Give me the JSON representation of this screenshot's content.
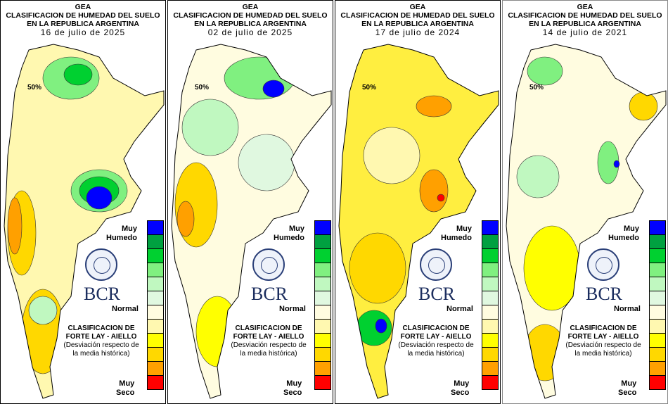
{
  "header": {
    "line1": "GEA",
    "line2": "CLASIFICACION DE HUMEDAD DEL SUELO",
    "line3": "EN LA REPUBLICA ARGENTINA"
  },
  "panels": [
    {
      "date": "16 de julio de 2025",
      "base": "#fff8b0"
    },
    {
      "date": "02 de julio de 2025",
      "base": "#fffce0"
    },
    {
      "date": "17 de julio de 2024",
      "base": "#ffee40"
    },
    {
      "date": "14 de julio de 2021",
      "base": "#fffce0"
    }
  ],
  "legend": {
    "top_label_1": "Muy",
    "top_label_2": "Humedo",
    "mid_label": "Normal",
    "bottom_label_1": "Muy",
    "bottom_label_2": "Seco",
    "colors": [
      "#0000ff",
      "#00a040",
      "#00d030",
      "#80f080",
      "#c0f8c0",
      "#e0f8e0",
      "#fffce0",
      "#fff8b0",
      "#ffff00",
      "#ffd800",
      "#ffa000",
      "#ff0000"
    ]
  },
  "logo": {
    "text": "BCR"
  },
  "classification": {
    "title1": "CLASIFICACION DE",
    "title2": "FORTE LAY - AIELLO",
    "note1": "(Desviación respecto de",
    "note2": "la media histórica)"
  },
  "contour_label": "50%"
}
